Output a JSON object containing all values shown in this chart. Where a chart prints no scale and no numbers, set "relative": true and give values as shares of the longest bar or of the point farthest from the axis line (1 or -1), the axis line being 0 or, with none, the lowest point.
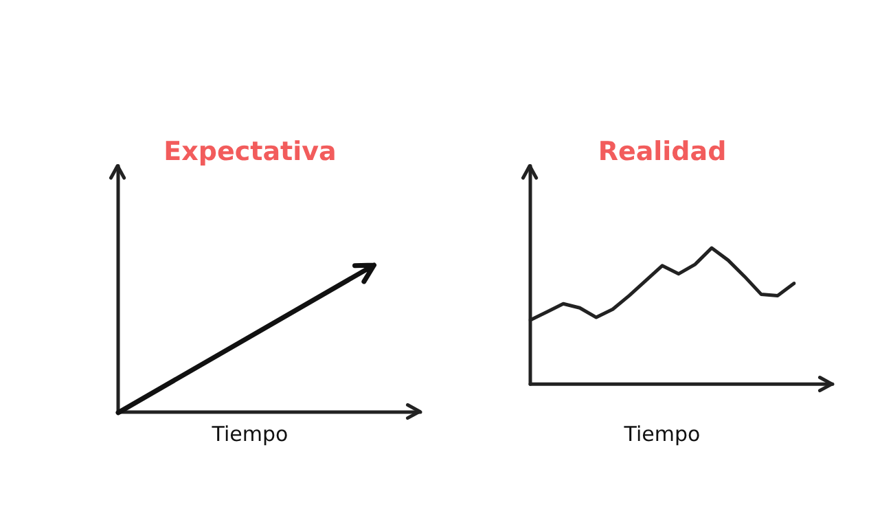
{
  "chart_data": [
    {
      "type": "other",
      "title": "Expectativa",
      "xlabel": "Tiempo"
    },
    {
      "type": "line",
      "title": "Realidad",
      "xlabel": "Tiempo",
      "relative": true,
      "marker": "none",
      "legend": false,
      "categories": [
        null,
        null,
        null,
        null,
        null,
        null,
        null,
        null,
        null,
        null,
        null,
        null,
        null,
        null,
        null,
        null,
        null
      ],
      "series": [
        {
          "color": "#222222",
          "values": [
            0.47,
            0.53,
            0.59,
            0.56,
            0.49,
            0.55,
            0.65,
            0.76,
            0.87,
            0.81,
            0.88,
            1,
            0.91,
            0.79,
            0.66,
            0.65,
            0.74
          ]
        }
      ]
    }
  ]
}
